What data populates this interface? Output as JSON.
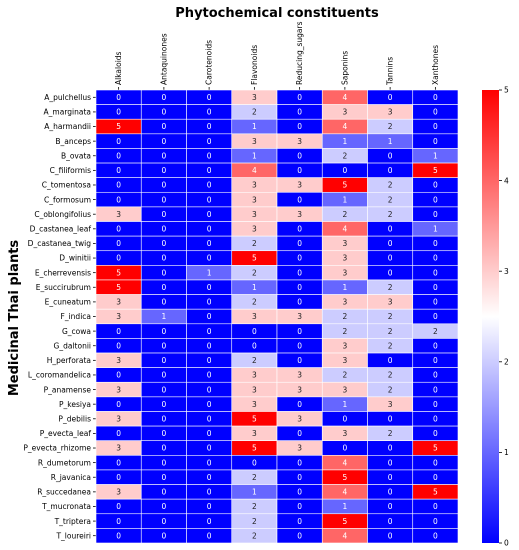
{
  "chart_data": {
    "type": "heatmap",
    "title": "Phytochemical constituents",
    "ylabel": "Medicinal Thai plants",
    "xlabel": "",
    "columns": [
      "Alkaloids",
      "Antaquinones",
      "Carotenoids",
      "Flavonoids",
      "Reducing_sugars",
      "Saponins",
      "Tannins",
      "Xanthones"
    ],
    "rows": [
      "A_pulchellus",
      "A_marginata",
      "A_harmandii",
      "B_anceps",
      "B_ovata",
      "C_filiformis",
      "C_tomentosa",
      "C_formosum",
      "C_oblongifolius",
      "D_castanea_leaf",
      "D_castanea_twig",
      "D_winitii",
      "E_cherrevensis",
      "E_succirubrum",
      "E_cuneatum",
      "F_indica",
      "G_cowa",
      "G_daltonii",
      "H_perforata",
      "L_coromandelica",
      "P_anamense",
      "P_kesiya",
      "P_debilis",
      "P_evecta_leaf",
      "P_evecta_rhizome",
      "R_dumetorum",
      "R_javanica",
      "R_succedanea",
      "T_mucronata",
      "T_triptera",
      "T_loureiri"
    ],
    "values": [
      [
        0,
        0,
        0,
        3,
        0,
        4,
        0,
        0
      ],
      [
        0,
        0,
        0,
        2,
        0,
        3,
        3,
        0
      ],
      [
        5,
        0,
        0,
        1,
        0,
        4,
        2,
        0
      ],
      [
        0,
        0,
        0,
        3,
        3,
        1,
        1,
        0
      ],
      [
        0,
        0,
        0,
        1,
        0,
        2,
        0,
        1
      ],
      [
        0,
        0,
        0,
        4,
        0,
        0,
        0,
        5
      ],
      [
        0,
        0,
        0,
        3,
        3,
        5,
        2,
        0
      ],
      [
        0,
        0,
        0,
        3,
        0,
        1,
        2,
        0
      ],
      [
        3,
        0,
        0,
        3,
        3,
        2,
        2,
        0
      ],
      [
        0,
        0,
        0,
        3,
        0,
        4,
        0,
        1
      ],
      [
        0,
        0,
        0,
        2,
        0,
        3,
        0,
        0
      ],
      [
        0,
        0,
        0,
        5,
        0,
        3,
        0,
        0
      ],
      [
        5,
        0,
        1,
        2,
        0,
        3,
        0,
        0
      ],
      [
        5,
        0,
        0,
        1,
        0,
        1,
        2,
        0
      ],
      [
        3,
        0,
        0,
        2,
        0,
        3,
        3,
        0
      ],
      [
        3,
        1,
        0,
        3,
        3,
        2,
        2,
        0
      ],
      [
        0,
        0,
        0,
        0,
        0,
        2,
        2,
        2
      ],
      [
        0,
        0,
        0,
        0,
        0,
        3,
        2,
        0
      ],
      [
        3,
        0,
        0,
        2,
        0,
        3,
        0,
        0
      ],
      [
        0,
        0,
        0,
        3,
        3,
        2,
        2,
        0
      ],
      [
        3,
        0,
        0,
        3,
        3,
        3,
        2,
        0
      ],
      [
        0,
        0,
        0,
        3,
        0,
        1,
        3,
        0
      ],
      [
        3,
        0,
        0,
        5,
        3,
        0,
        0,
        0
      ],
      [
        0,
        0,
        0,
        3,
        0,
        3,
        2,
        0
      ],
      [
        3,
        0,
        0,
        5,
        3,
        0,
        0,
        5
      ],
      [
        0,
        0,
        0,
        0,
        0,
        4,
        0,
        0
      ],
      [
        0,
        0,
        0,
        2,
        0,
        5,
        0,
        0
      ],
      [
        3,
        0,
        0,
        1,
        0,
        4,
        0,
        5
      ],
      [
        0,
        0,
        0,
        2,
        0,
        1,
        0,
        0
      ],
      [
        0,
        0,
        0,
        2,
        0,
        5,
        0,
        0
      ],
      [
        0,
        0,
        0,
        2,
        0,
        4,
        0,
        0
      ]
    ],
    "vmin": 0,
    "vmax": 5,
    "colormap": "bwr",
    "colorbar_ticks": [
      0,
      1,
      2,
      3,
      4,
      5
    ],
    "annotations": true,
    "cell_gridlines": "white",
    "colors": {
      "low": "#0000ff",
      "mid": "#ffffff",
      "high": "#ff0000"
    }
  }
}
